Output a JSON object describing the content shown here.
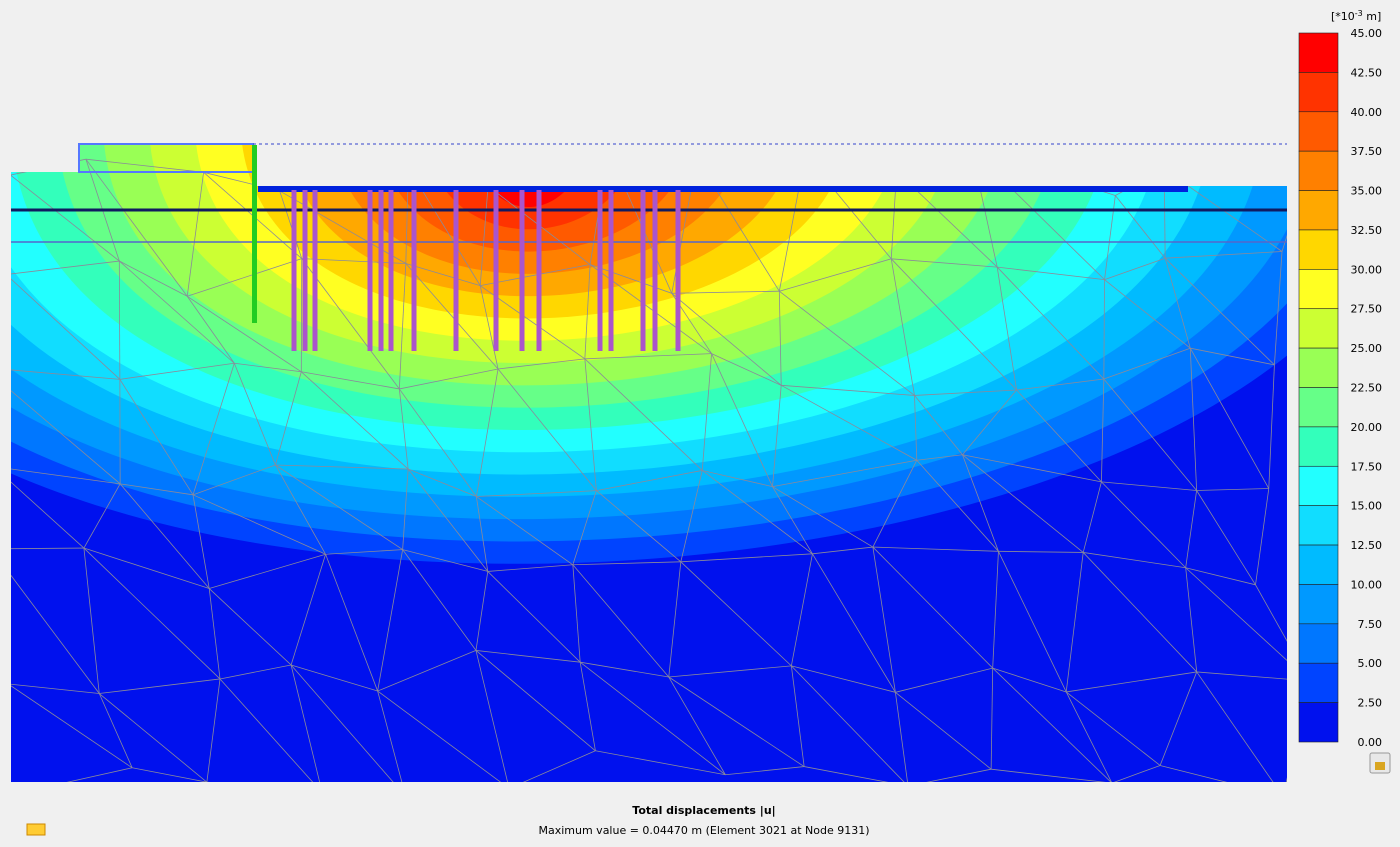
{
  "legend": {
    "unit_prefix": "[*10",
    "unit_exponent": "-3",
    "unit_suffix": " m]",
    "ticks": [
      "45.00",
      "42.50",
      "40.00",
      "37.50",
      "35.00",
      "32.50",
      "30.00",
      "27.50",
      "25.00",
      "22.50",
      "20.00",
      "17.50",
      "15.00",
      "12.50",
      "10.00",
      "7.50",
      "5.00",
      "2.50",
      "0.00"
    ],
    "colors": [
      "#ff0000",
      "#ff3300",
      "#ff5a00",
      "#ff8000",
      "#ffa800",
      "#ffd700",
      "#ffff22",
      "#ccff33",
      "#99ff55",
      "#66ff88",
      "#33ffbb",
      "#22ffff",
      "#11ddff",
      "#00bbff",
      "#0099ff",
      "#0077ff",
      "#0044ff",
      "#0011ee"
    ]
  },
  "footer": {
    "title": "Total displacements |u|",
    "caption": "Maximum value = 0.04470 m (Element 3021 at Node 9131)"
  }
}
